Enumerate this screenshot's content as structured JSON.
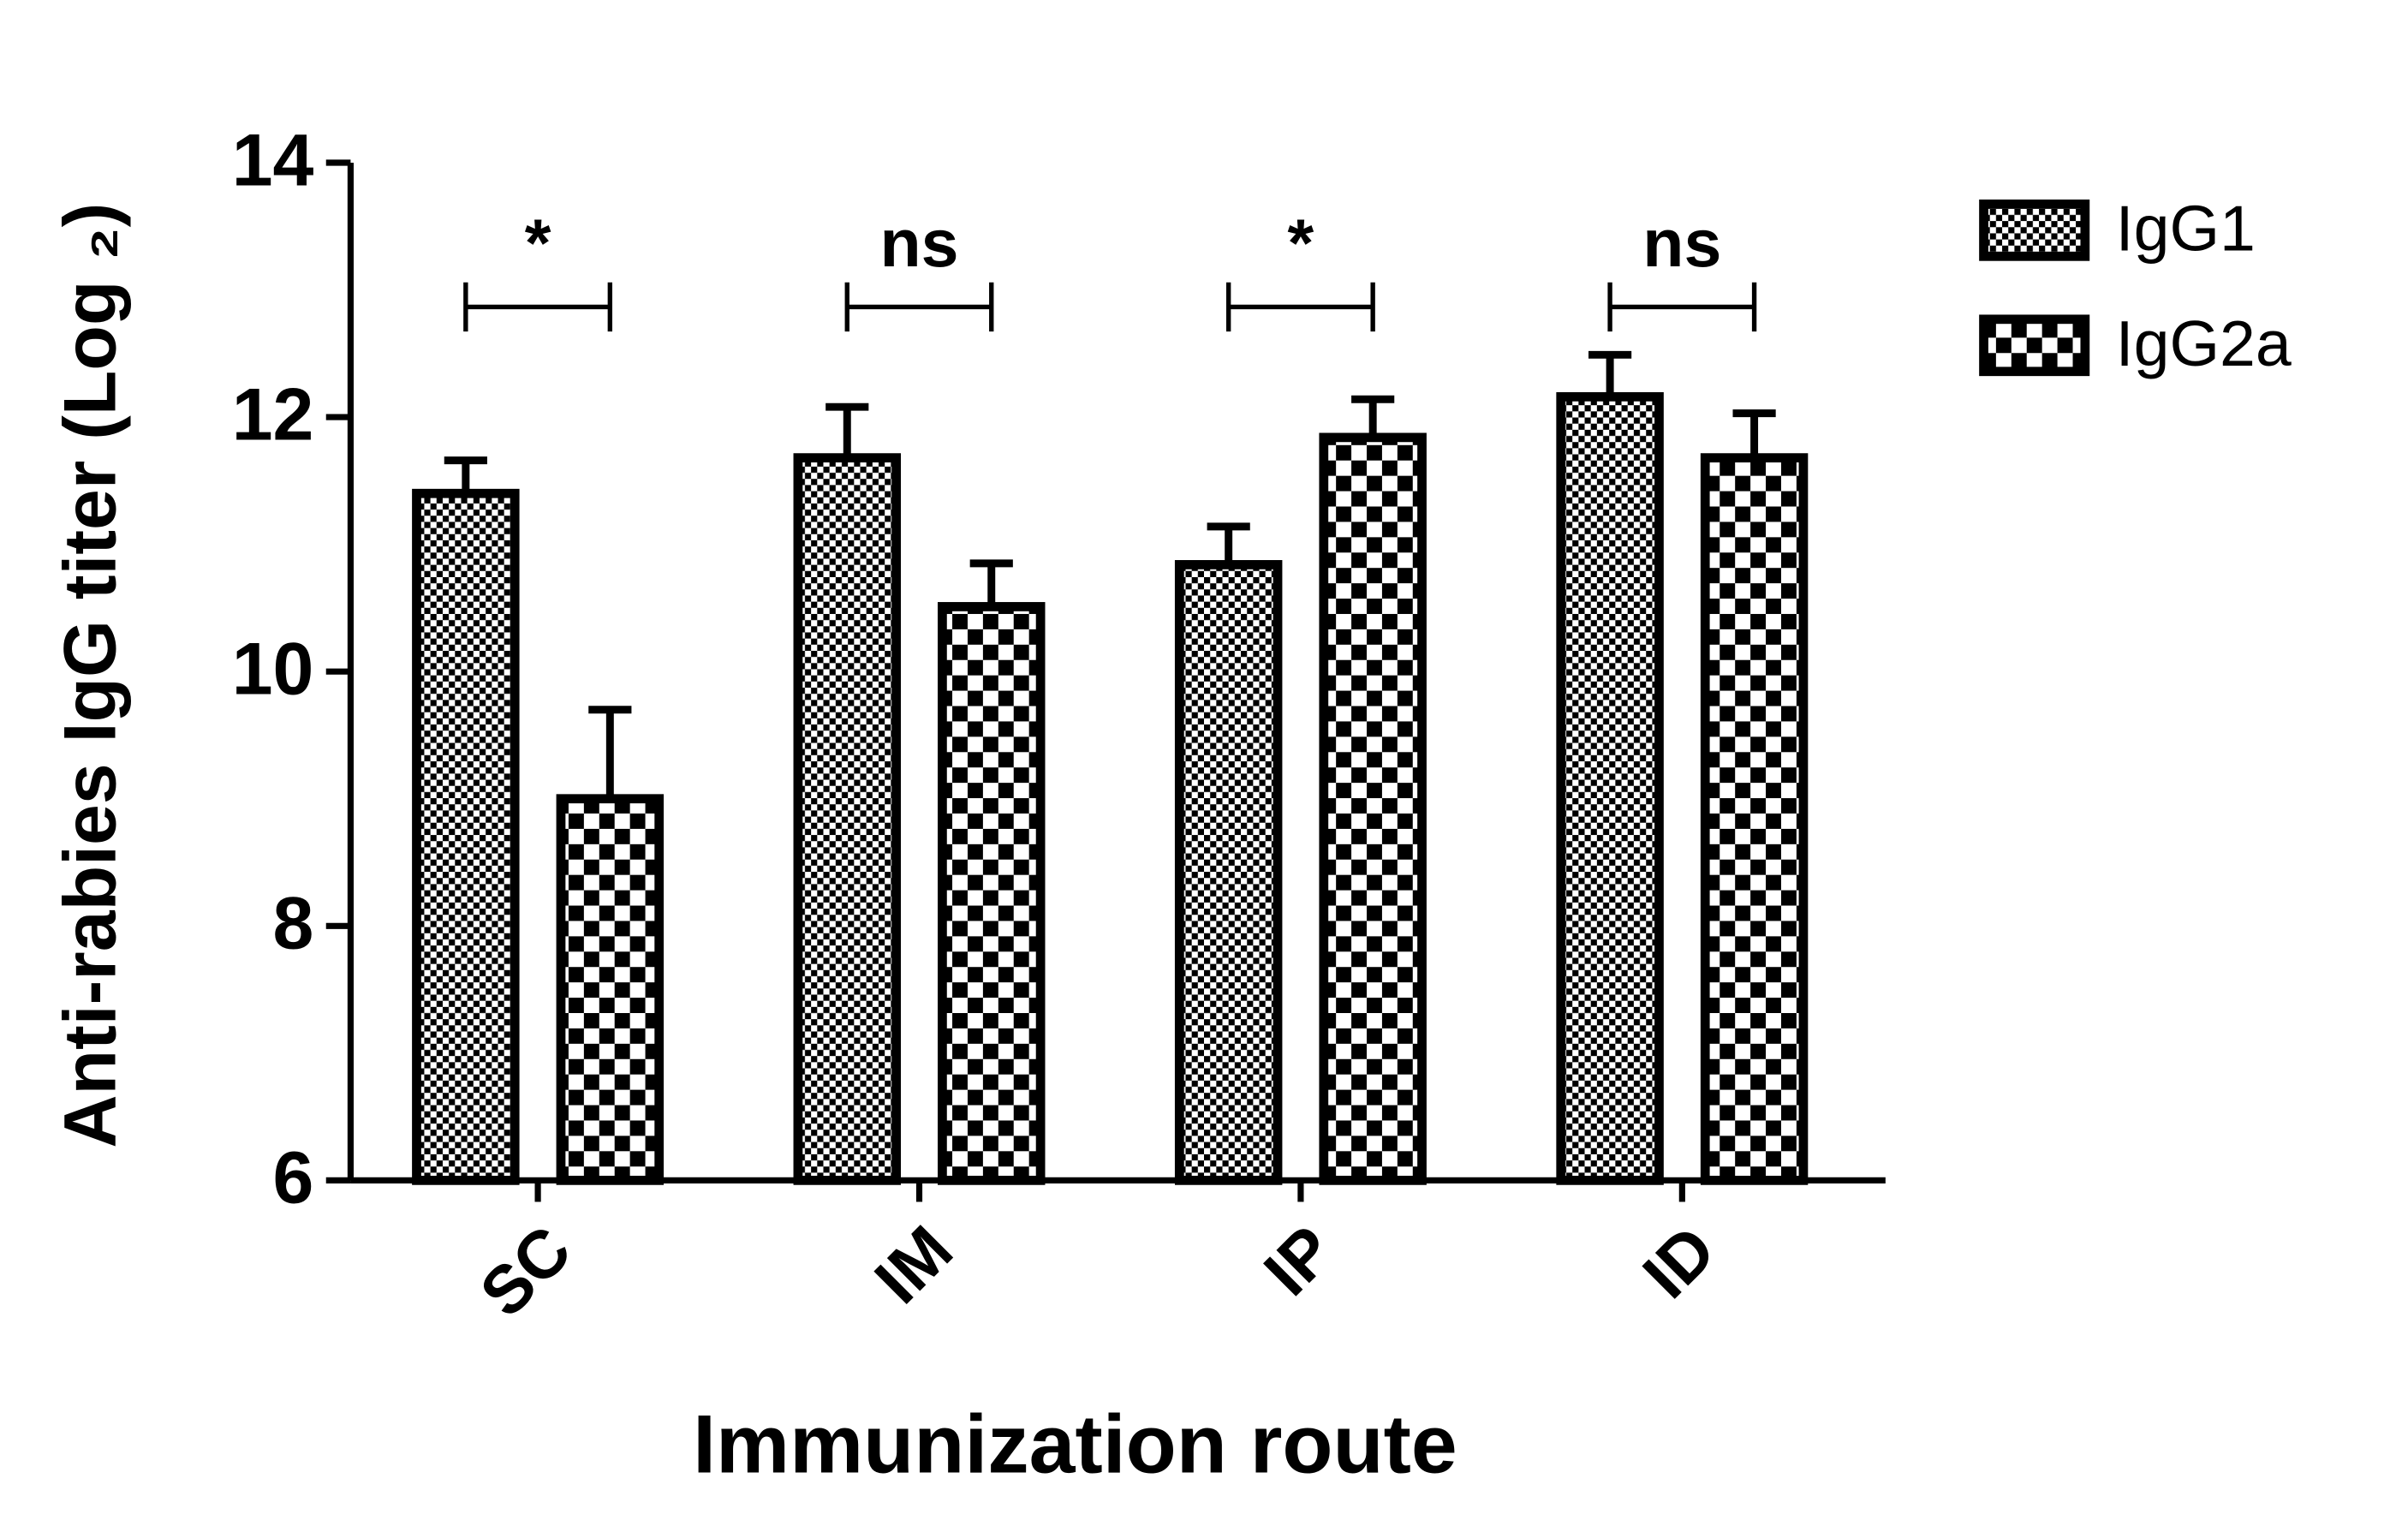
{
  "chart_data": {
    "type": "bar",
    "x_label": "Immunization route",
    "y_label": "Anti-rabies IgG titer (Log ₂)",
    "categories": [
      "SC",
      "IM",
      "IP",
      "ID"
    ],
    "series": [
      {
        "name": "IgG1",
        "color": "#000000",
        "pattern": "fine-checker",
        "values": [
          11.4,
          11.68,
          10.84,
          12.16
        ],
        "errors": [
          0.26,
          0.4,
          0.3,
          0.33
        ]
      },
      {
        "name": "IgG2a",
        "color": "#000000",
        "pattern": "coarse-checker",
        "values": [
          9.0,
          10.51,
          11.84,
          11.68
        ],
        "errors": [
          0.7,
          0.34,
          0.3,
          0.35
        ]
      }
    ],
    "annotations": [
      "*",
      "ns",
      "*",
      "ns"
    ],
    "ylim": [
      6,
      14
    ],
    "yticks": [
      6,
      8,
      10,
      12,
      14
    ],
    "legend": "right",
    "grid": false
  }
}
